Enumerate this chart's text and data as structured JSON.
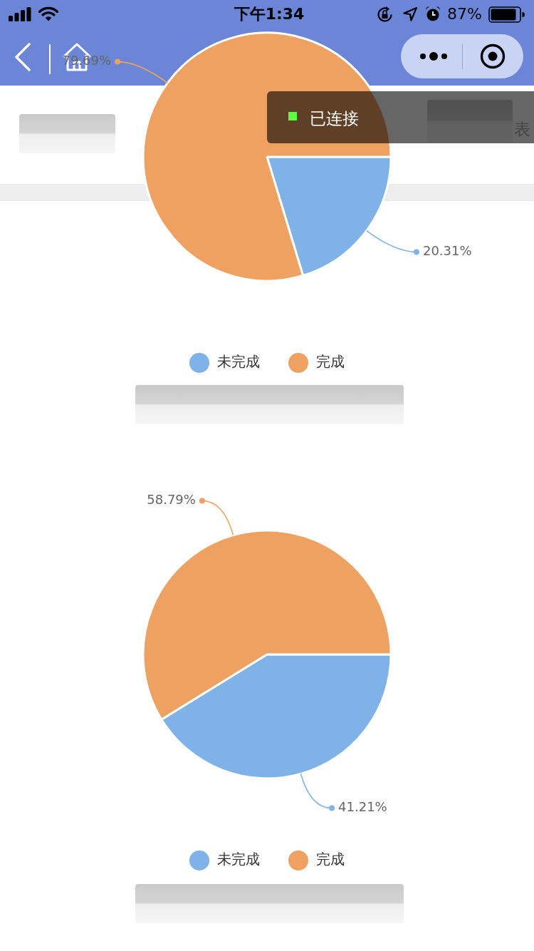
{
  "chart_data": [
    {
      "type": "pie",
      "categories": [
        "未完成",
        "完成"
      ],
      "values": [
        20.31,
        79.69
      ],
      "colors": [
        "#7fb3e8",
        "#eea160"
      ],
      "value_labels": [
        "20.31%",
        "79.69%"
      ],
      "legend": "bottom",
      "annotations": [
        "下午1:34",
        "87%",
        "已连接",
        "表"
      ]
    },
    {
      "type": "pie",
      "categories": [
        "未完成",
        "完成"
      ],
      "values": [
        41.21,
        58.79
      ],
      "colors": [
        "#7fb3e8",
        "#eea160"
      ],
      "value_labels": [
        "41.21%",
        "58.79%"
      ],
      "legend": "bottom"
    }
  ]
}
